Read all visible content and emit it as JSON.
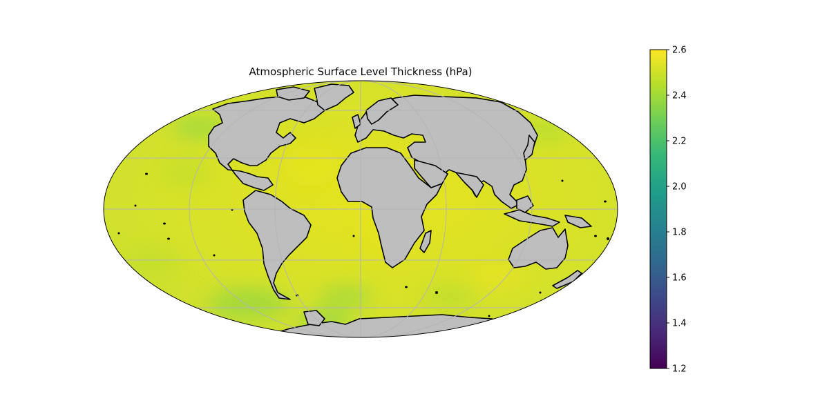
{
  "title": "Atmospheric Surface Level Thickness (hPa)",
  "map": {
    "projection": "Mollweide",
    "land_color": "#bebebe",
    "coastline_color": "#000000",
    "graticule_color": "#b4b4b4",
    "colormap": "viridis"
  },
  "colorbar": {
    "min": 1.2,
    "max": 2.6,
    "tick_labels": [
      "1.2",
      "1.4",
      "1.6",
      "1.8",
      "2.0",
      "2.2",
      "2.4",
      "2.6"
    ],
    "colors": [
      "#440154",
      "#482878",
      "#3e4989",
      "#31688e",
      "#26828e",
      "#1f9e89",
      "#35b779",
      "#6ece58",
      "#b5de2b",
      "#fde725"
    ]
  }
}
